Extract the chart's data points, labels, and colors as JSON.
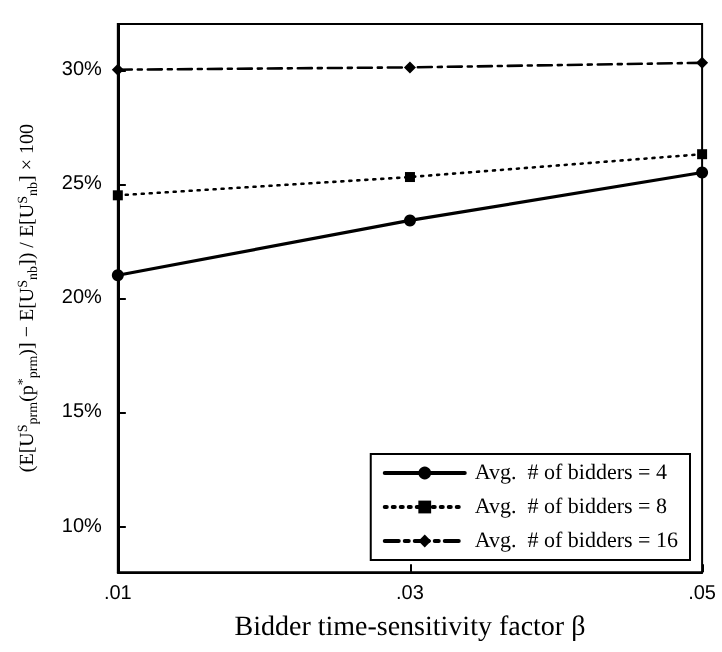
{
  "chart_data": {
    "type": "line",
    "xlabel": "Bidder time-sensitivity factor β",
    "ylabel": "(E[U$^{S}$$_{prm}$(p$^{*}$$_{prm}$)] − E[U$^{S}$$_{nb}$]) / E[U$^{S}$$_{nb}$] × 100",
    "x": [
      0.01,
      0.03,
      0.05
    ],
    "series": [
      {
        "name": "Avg.  # of bidders = 4",
        "color": "#000000",
        "values": [
          21.0,
          23.4,
          25.5
        ],
        "marker": "circle",
        "line_style": "solid"
      },
      {
        "name": "Avg.  # of bidders = 8",
        "color": "#000000",
        "values": [
          24.5,
          25.3,
          26.3
        ],
        "marker": "square",
        "line_style": "dotted"
      },
      {
        "name": "Avg.  # of bidders = 16",
        "color": "#000000",
        "values": [
          30.0,
          30.1,
          30.3
        ],
        "marker": "diamond",
        "line_style": "dashdot"
      }
    ],
    "xlim": [
      0.01,
      0.05
    ],
    "xticks": [
      {
        "value": 0.01,
        "label": ".01"
      },
      {
        "value": 0.03,
        "label": ".03"
      },
      {
        "value": 0.05,
        "label": ".05"
      }
    ],
    "ylim": [
      8,
      32
    ],
    "yticks": [
      {
        "value": 10,
        "label": "10%"
      },
      {
        "value": 15,
        "label": "15%"
      },
      {
        "value": 20,
        "label": "20%"
      },
      {
        "value": 25,
        "label": "25%"
      },
      {
        "value": 30,
        "label": "30%"
      }
    ],
    "grid": false,
    "legend": "bottom right"
  }
}
